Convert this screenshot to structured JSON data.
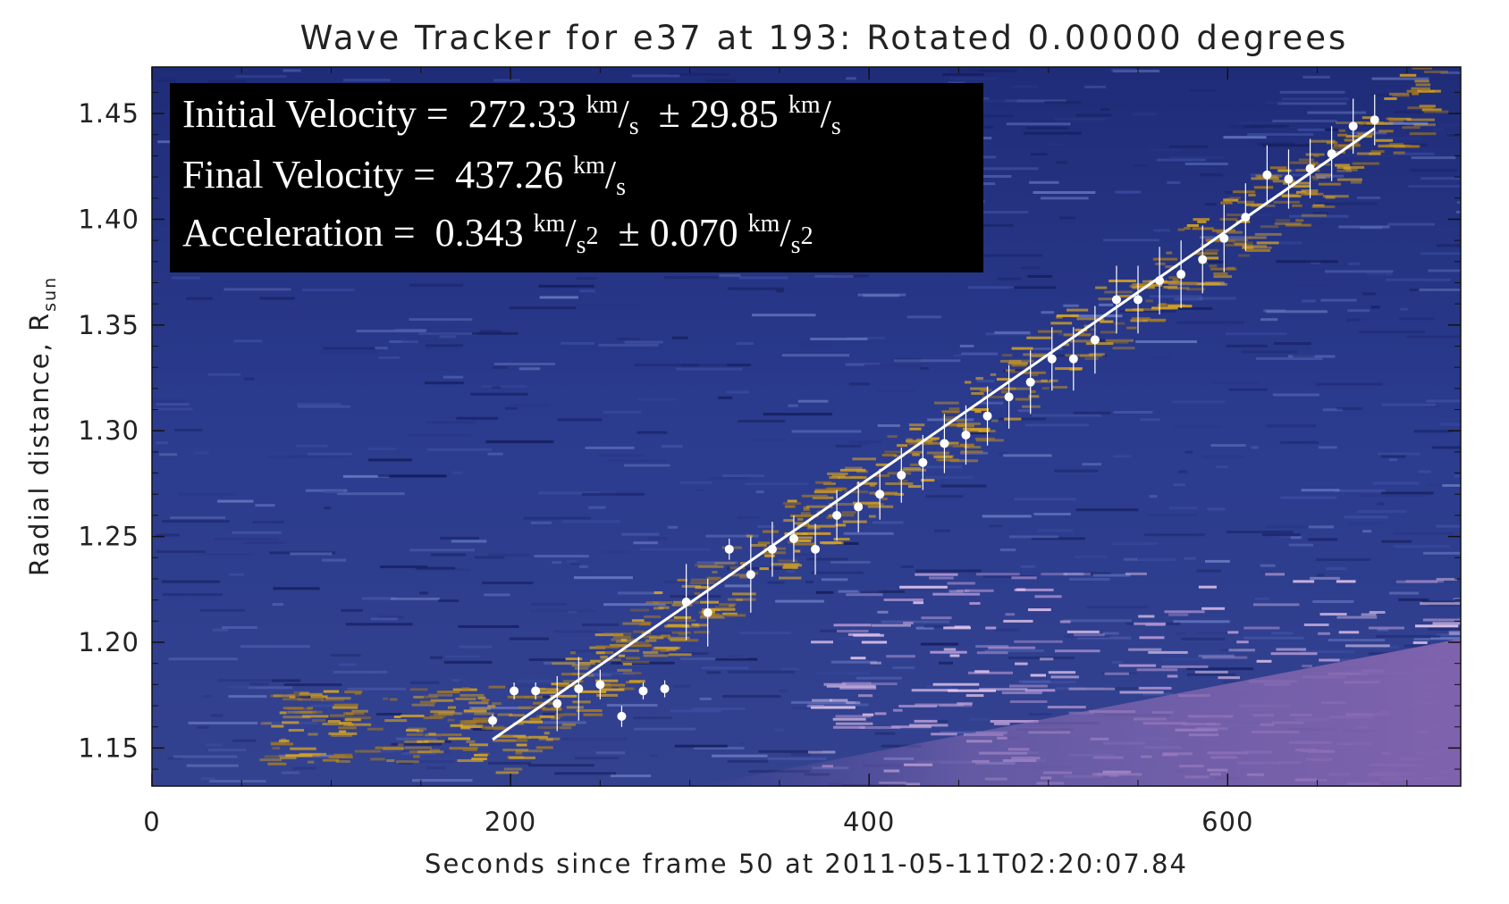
{
  "chart_data": {
    "type": "scatter",
    "title": "Wave Tracker for e37 at 193: Rotated 0.00000 degrees",
    "xlabel": "Seconds since frame 50 at 2011-05-11T02:20:07.84",
    "ylabel": "Radial distance, R",
    "ylabel_sub": "sun",
    "xlim": [
      0,
      730
    ],
    "ylim": [
      1.132,
      1.472
    ],
    "x_ticks": [
      0,
      200,
      400,
      600
    ],
    "x_tick_labels": [
      "0",
      "200",
      "400",
      "600"
    ],
    "y_ticks": [
      1.15,
      1.2,
      1.25,
      1.3,
      1.35,
      1.4,
      1.45
    ],
    "y_tick_labels": [
      "1.15",
      "1.20",
      "1.25",
      "1.30",
      "1.35",
      "1.40",
      "1.45"
    ],
    "grid": false,
    "series": [
      {
        "type": "scatter_with_errorbars",
        "x": [
          190,
          202,
          214,
          226,
          238,
          250,
          262,
          274,
          286,
          298,
          310,
          322,
          334,
          346,
          358,
          370,
          382,
          394,
          406,
          418,
          430,
          442,
          454,
          466,
          478,
          490,
          502,
          514,
          526,
          538,
          550,
          562,
          574,
          586,
          598,
          610,
          622,
          634,
          646,
          658,
          670,
          682
        ],
        "y": [
          1.163,
          1.177,
          1.177,
          1.171,
          1.178,
          1.18,
          1.165,
          1.177,
          1.178,
          1.219,
          1.214,
          1.244,
          1.232,
          1.244,
          1.249,
          1.244,
          1.26,
          1.264,
          1.27,
          1.279,
          1.285,
          1.294,
          1.298,
          1.307,
          1.316,
          1.323,
          1.334,
          1.334,
          1.343,
          1.362,
          1.362,
          1.371,
          1.374,
          1.381,
          1.391,
          1.401,
          1.421,
          1.419,
          1.424,
          1.431,
          1.444,
          1.447
        ],
        "yerr": [
          0.003,
          0.004,
          0.004,
          0.013,
          0.015,
          0.007,
          0.005,
          0.004,
          0.004,
          0.018,
          0.016,
          0.005,
          0.018,
          0.013,
          0.011,
          0.012,
          0.012,
          0.012,
          0.012,
          0.013,
          0.013,
          0.014,
          0.014,
          0.014,
          0.015,
          0.015,
          0.015,
          0.015,
          0.016,
          0.016,
          0.016,
          0.016,
          0.016,
          0.016,
          0.016,
          0.016,
          0.014,
          0.014,
          0.014,
          0.013,
          0.013,
          0.012
        ]
      },
      {
        "type": "fit_line",
        "x": [
          190,
          682
        ],
        "y": [
          1.154,
          1.443
        ]
      }
    ],
    "annotations": {
      "box_color": "#000000",
      "text_color": "#ffffff",
      "lines": [
        {
          "label": "Initial Velocity = ",
          "value": "272.33",
          "unit_num": "km",
          "unit_den": "s",
          "pm": "± 29.85",
          "pm_unit_num": "km",
          "pm_unit_den": "s"
        },
        {
          "label": "Final Velocity = ",
          "value": "437.26",
          "unit_num": "km",
          "unit_den": "s"
        },
        {
          "label": "Acceleration = ",
          "value": "0.343",
          "unit_num": "km",
          "unit_den": "s",
          "unit_den_exp": "2",
          "pm": "± 0.070",
          "pm_unit_num": "km",
          "pm_unit_den": "s",
          "pm_unit_den_exp": "2"
        }
      ]
    },
    "colors": {
      "background_base": "#2b3a8c",
      "wave_signal": "#d9a520",
      "lower_bright": "#7d5fa8",
      "marker": "#ffffff",
      "fit_line": "#ffffff"
    }
  }
}
